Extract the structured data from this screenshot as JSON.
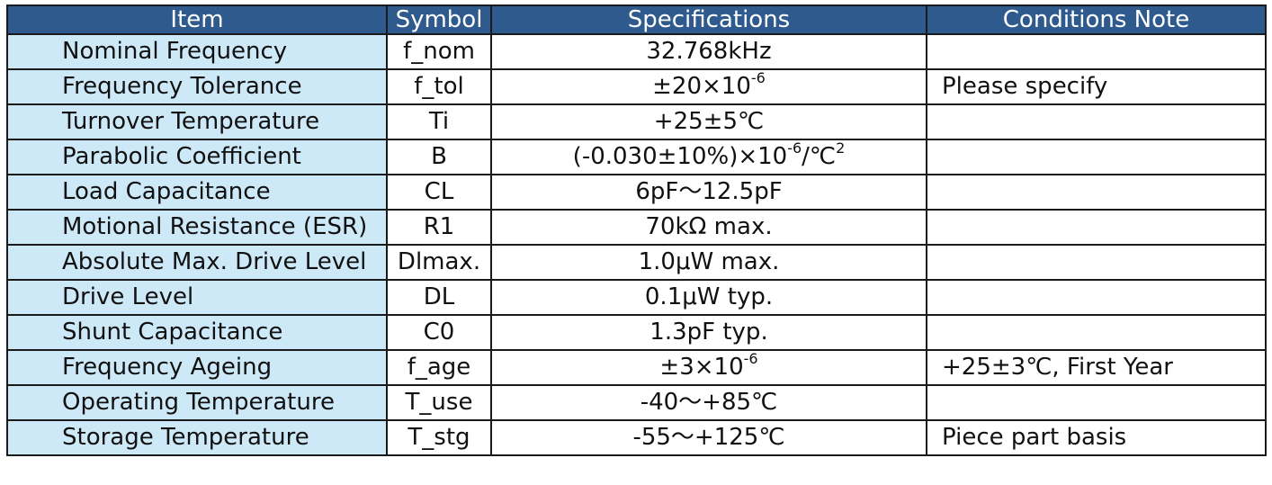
{
  "headers": {
    "item": "Item",
    "symbol": "Symbol",
    "specifications": "Specifications",
    "conditions": "Conditions Note"
  },
  "rows": [
    {
      "item": "Nominal Frequency",
      "symbol": "f_nom",
      "spec": "32.768kHz",
      "note": ""
    },
    {
      "item": "Frequency Tolerance",
      "symbol": "f_tol",
      "spec_pre": "±20×10",
      "spec_sup": "-6",
      "note": "Please specify"
    },
    {
      "item": "Turnover Temperature",
      "symbol": "Ti",
      "spec": "+25±5℃",
      "note": ""
    },
    {
      "item": "Parabolic Coefficient",
      "symbol": "B",
      "spec_pre": "(-0.030±10%)×10",
      "spec_sup": "-6",
      "spec_mid": "/℃",
      "spec_sup2": "2",
      "note": ""
    },
    {
      "item": "Load Capacitance",
      "symbol": "CL",
      "spec": "6pF～12.5pF",
      "note": ""
    },
    {
      "item": "Motional Resistance (ESR)",
      "symbol": "R1",
      "spec": "70kΩ max.",
      "note": ""
    },
    {
      "item": "Absolute Max. Drive Level",
      "symbol": "Dlmax.",
      "spec": "1.0μW max.",
      "note": ""
    },
    {
      "item": "Drive Level",
      "symbol": "DL",
      "spec": "0.1μW typ.",
      "note": ""
    },
    {
      "item": "Shunt Capacitance",
      "symbol": "C0",
      "spec": "1.3pF typ.",
      "note": ""
    },
    {
      "item": "Frequency Ageing",
      "symbol": "f_age",
      "spec_pre": "±3×10",
      "spec_sup": "-6",
      "note": "+25±3℃, First Year"
    },
    {
      "item": "Operating Temperature",
      "symbol": "T_use",
      "spec": "-40～+85℃",
      "note": ""
    },
    {
      "item": "Storage Temperature",
      "symbol": "T_stg",
      "spec": "-55～+125℃",
      "note": "Piece part basis"
    }
  ]
}
